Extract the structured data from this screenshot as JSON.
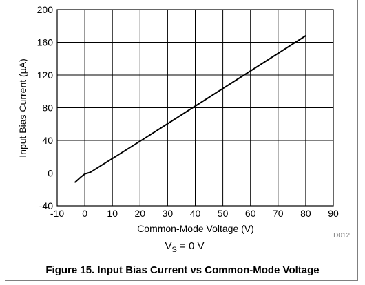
{
  "chart_data": {
    "type": "line",
    "title": "",
    "xlabel": "Common-Mode Voltage (V)",
    "ylabel": "Input Bias Current (µA)",
    "xlim": [
      -10,
      90
    ],
    "ylim": [
      -40,
      200
    ],
    "xticks": [
      -10,
      0,
      10,
      20,
      30,
      40,
      50,
      60,
      70,
      80,
      90
    ],
    "yticks": [
      -40,
      0,
      40,
      80,
      120,
      160,
      200
    ],
    "grid": true,
    "legend": "none",
    "series": [
      {
        "color": "#000000",
        "x": [
          -3.5,
          -1.5,
          0,
          2,
          20,
          40,
          60,
          80
        ],
        "y": [
          -11,
          -5,
          -1,
          1,
          39,
          82,
          125,
          168
        ]
      }
    ],
    "annotations": {
      "condition_main": "V",
      "condition_sub": "S",
      "condition_rest": " = 0 V",
      "code": "D012"
    }
  },
  "caption": "Figure 15. Input Bias Current vs Common-Mode Voltage"
}
